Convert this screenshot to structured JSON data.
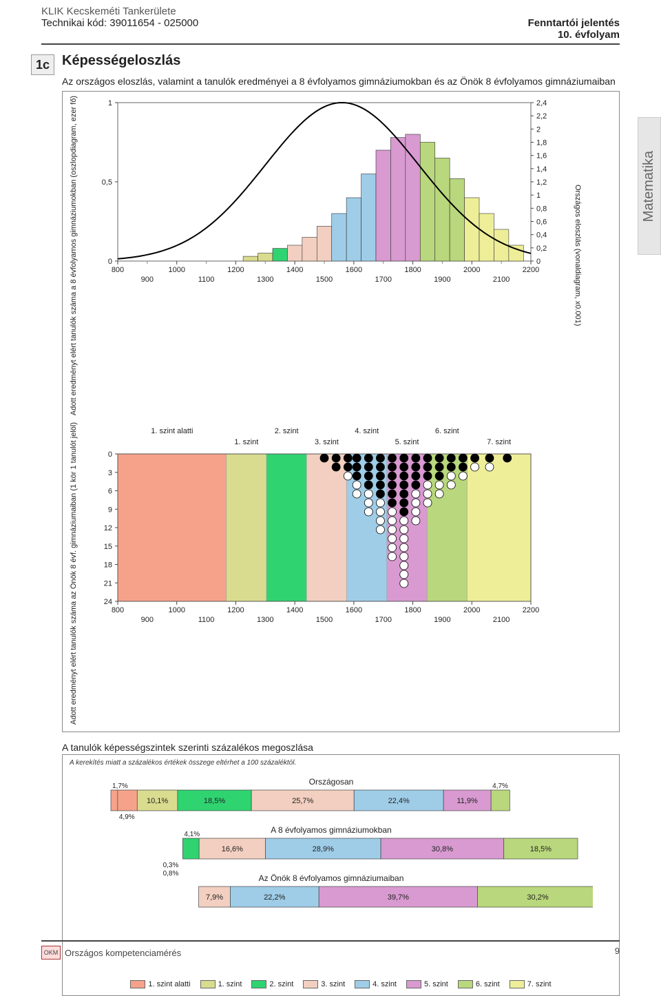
{
  "header": {
    "org": "KLIK Kecskeméti Tankerülete",
    "tech": "Technikai kód: 39011654 - 025000",
    "report": "Fenntartói jelentés",
    "grade": "10. évfolyam"
  },
  "section": {
    "num": "1c",
    "title": "Képességeloszlás"
  },
  "intro": "Az országos eloszlás, valamint a tanulók eredményei a 8 évfolyamos gimnáziumokban és az Önök 8 évfolyamos gimnáziumaiban",
  "side_label": "Matematika",
  "levels": {
    "names": [
      "1. szint alatti",
      "1. szint",
      "2. szint",
      "3. szint",
      "4. szint",
      "5. szint",
      "6. szint",
      "7. szint"
    ],
    "colors": [
      "#f6a28a",
      "#d9dc8e",
      "#2fd471",
      "#f2cfc0",
      "#9fcde8",
      "#d89ad0",
      "#b9d77c",
      "#eeee99"
    ]
  },
  "chart1": {
    "x_ticks_major": [
      800,
      1000,
      1200,
      1400,
      1600,
      1800,
      2000,
      2200
    ],
    "x_ticks_minor": [
      900,
      1100,
      1300,
      1500,
      1700,
      1900,
      2100
    ],
    "y_left_ticks": [
      0,
      0.5,
      1
    ],
    "y_right_ticks": [
      0,
      0.2,
      0.4,
      0.6,
      0.8,
      1,
      1.2,
      1.4,
      1.6,
      1.8,
      2,
      2.2,
      2.4
    ],
    "y_left_label": "Adott eredményt elért tanulók száma\na 8 évfolyamos gimnáziumokban\n(oszlopdiagram, ezer fő)",
    "y_right_label": "Országos eloszlás (vonaldiagram, x0.001)",
    "bars": {
      "bin_centers": [
        1250,
        1300,
        1350,
        1400,
        1450,
        1500,
        1550,
        1600,
        1650,
        1700,
        1750,
        1800,
        1850,
        1900,
        1950,
        2000,
        2050,
        2100,
        2150
      ],
      "heights_kfo": [
        0.03,
        0.05,
        0.08,
        0.1,
        0.15,
        0.22,
        0.3,
        0.4,
        0.55,
        0.7,
        0.78,
        0.8,
        0.75,
        0.65,
        0.52,
        0.4,
        0.3,
        0.2,
        0.1
      ],
      "colors": [
        "#d9dc8e",
        "#d9dc8e",
        "#2fd471",
        "#f2cfc0",
        "#f2cfc0",
        "#f2cfc0",
        "#9fcde8",
        "#9fcde8",
        "#9fcde8",
        "#d89ad0",
        "#d89ad0",
        "#d89ad0",
        "#b9d77c",
        "#b9d77c",
        "#b9d77c",
        "#eeee99",
        "#eeee99",
        "#eeee99",
        "#eeee99"
      ]
    },
    "bell": {
      "mu": 1560,
      "sigma": 260,
      "peak": 2.4
    },
    "border_color": "#444"
  },
  "chart2": {
    "level_labels_top": [
      "1. szint alatti",
      "2. szint",
      "4. szint",
      "6. szint"
    ],
    "level_labels_bot": [
      "1. szint",
      "3. szint",
      "5. szint",
      "7. szint"
    ],
    "y_ticks": [
      0,
      3,
      6,
      9,
      12,
      15,
      18,
      21,
      24
    ],
    "y_label": "Adott eredményt elért tanulók száma\naz Önök 8 évf. gimnáziumaiban\n(1 kör 1 tanulót jelöl)",
    "bands": {
      "edges": [
        800,
        1168,
        1304,
        1440,
        1576,
        1712,
        1848,
        1984,
        2200
      ],
      "colors": [
        "#f6a28a",
        "#d9dc8e",
        "#2fd471",
        "#f2cfc0",
        "#9fcde8",
        "#d89ad0",
        "#b9d77c",
        "#eeee99"
      ]
    },
    "students": [
      {
        "x": 1500,
        "n": 1,
        "k": 1
      },
      {
        "x": 1540,
        "n": 2,
        "k": 2
      },
      {
        "x": 1580,
        "n": 3,
        "k": 2
      },
      {
        "x": 1610,
        "n": 5,
        "k": 3
      },
      {
        "x": 1650,
        "n": 7,
        "k": 4
      },
      {
        "x": 1690,
        "n": 9,
        "k": 5
      },
      {
        "x": 1730,
        "n": 12,
        "k": 6
      },
      {
        "x": 1770,
        "n": 15,
        "k": 7
      },
      {
        "x": 1810,
        "n": 8,
        "k": 4
      },
      {
        "x": 1850,
        "n": 6,
        "k": 3
      },
      {
        "x": 1890,
        "n": 5,
        "k": 3
      },
      {
        "x": 1930,
        "n": 4,
        "k": 2
      },
      {
        "x": 1970,
        "n": 3,
        "k": 2
      },
      {
        "x": 2010,
        "n": 2,
        "k": 1
      },
      {
        "x": 2060,
        "n": 2,
        "k": 1
      },
      {
        "x": 2120,
        "n": 1,
        "k": 1
      }
    ]
  },
  "chart3": {
    "title": "A tanulók képességszintek szerinti százalékos megoszlása",
    "note": "A kerekítés miatt a százalékos értékek összege eltérhet a 100 százaléktól.",
    "rows": [
      {
        "label": "Országosan",
        "offset": 0,
        "seg": [
          {
            "v": 1.7,
            "c": "#f6a28a",
            "t": "1,7%"
          },
          {
            "v": 4.9,
            "c": "#f6a28a",
            "t": "4,9%",
            "below": true
          },
          {
            "v": 10.1,
            "c": "#d9dc8e",
            "t": "10,1%"
          },
          {
            "v": 18.5,
            "c": "#2fd471",
            "t": "18,5%"
          },
          {
            "v": 25.7,
            "c": "#f2cfc0",
            "t": "25,7%"
          },
          {
            "v": 22.4,
            "c": "#9fcde8",
            "t": "22,4%"
          },
          {
            "v": 11.9,
            "c": "#d89ad0",
            "t": "11,9%"
          },
          {
            "v": 4.7,
            "c": "#b9d77c",
            "t": "4,7%"
          }
        ]
      },
      {
        "label": "A 8 évfolyamos gimnáziumokban",
        "offset": 18,
        "preseg": [
          {
            "v": 0.3,
            "t": "0,3%"
          },
          {
            "v": 0.8,
            "t": "0,8%"
          }
        ],
        "seg": [
          {
            "v": 4.1,
            "c": "#2fd471",
            "t": "4,1%"
          },
          {
            "v": 16.6,
            "c": "#f2cfc0",
            "t": "16,6%"
          },
          {
            "v": 28.9,
            "c": "#9fcde8",
            "t": "28,9%"
          },
          {
            "v": 30.8,
            "c": "#d89ad0",
            "t": "30,8%"
          },
          {
            "v": 18.5,
            "c": "#b9d77c",
            "t": "18,5%"
          }
        ]
      },
      {
        "label": "Az Önök 8 évfolyamos gimnáziumaiban",
        "offset": 22,
        "seg": [
          {
            "v": 7.9,
            "c": "#f2cfc0",
            "t": "7,9%"
          },
          {
            "v": 22.2,
            "c": "#9fcde8",
            "t": "22,2%"
          },
          {
            "v": 39.7,
            "c": "#d89ad0",
            "t": "39,7%"
          },
          {
            "v": 30.2,
            "c": "#b9d77c",
            "t": "30,2%"
          }
        ]
      }
    ]
  },
  "footer": {
    "left": "Országos kompetenciamérés",
    "page": "9",
    "logo": "OKM"
  }
}
